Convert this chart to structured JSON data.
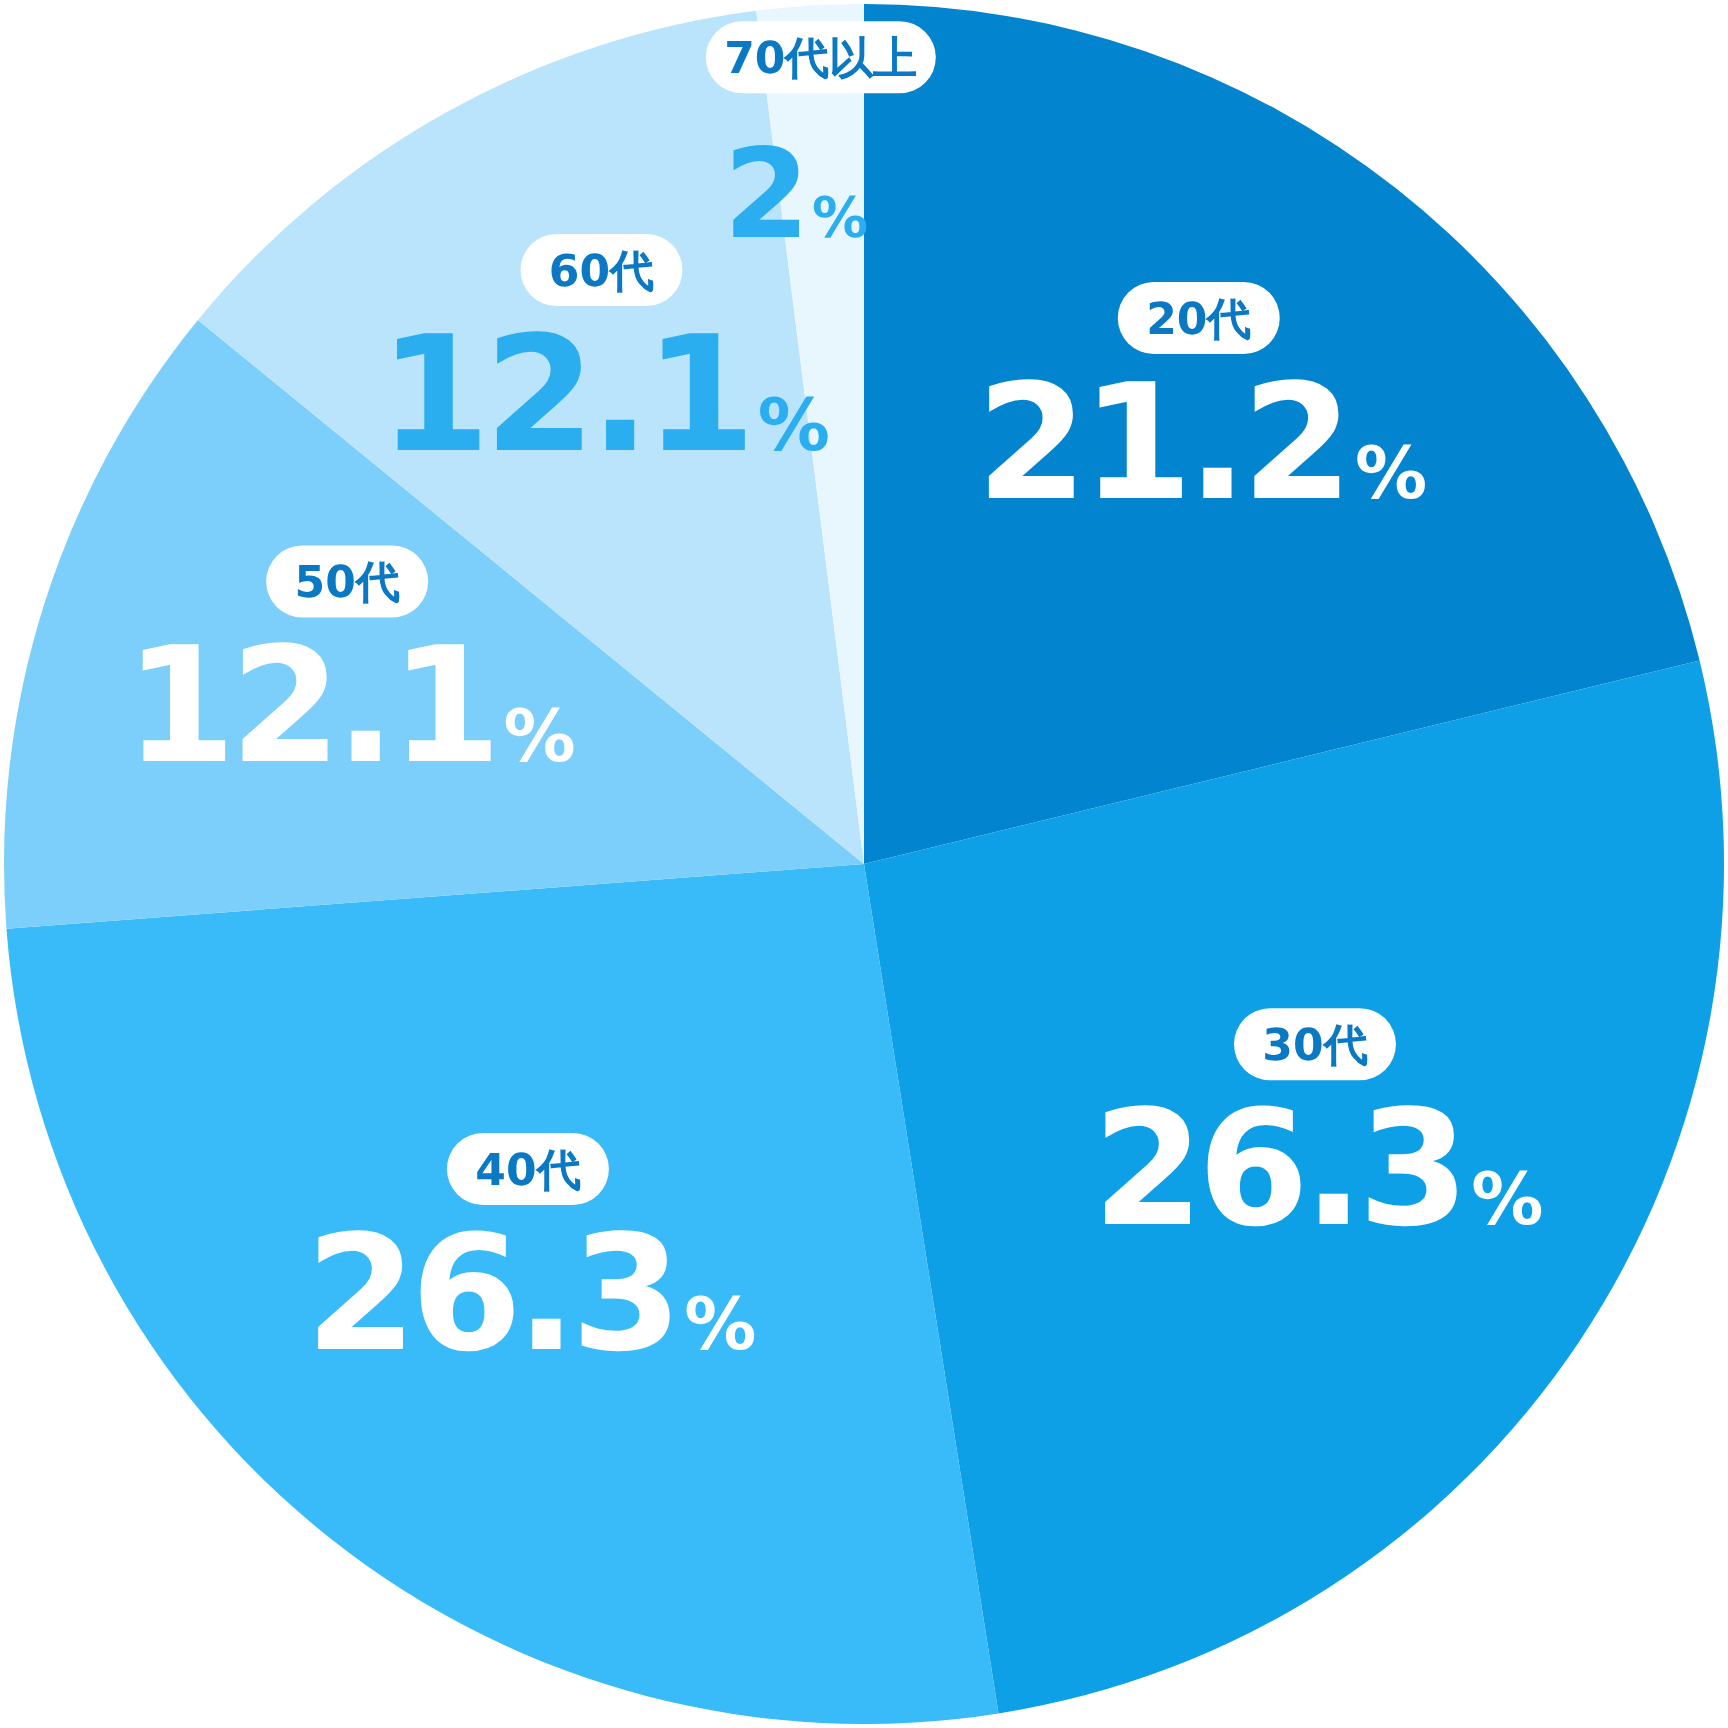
{
  "chart_data": {
    "type": "pie",
    "categories": [
      "20代",
      "30代",
      "40代",
      "50代",
      "60代",
      "70代以上"
    ],
    "values": [
      21.2,
      26.3,
      26.3,
      12.1,
      12.1,
      2
    ],
    "colors": [
      "#0284cf",
      "#0ea0e6",
      "#38bbf8",
      "#7dcffb",
      "#b9e4fc",
      "#e8f6fe"
    ],
    "value_labels": [
      "21.2%",
      "26.3%",
      "26.3%",
      "12.1%",
      "12.1%",
      "2%"
    ]
  }
}
